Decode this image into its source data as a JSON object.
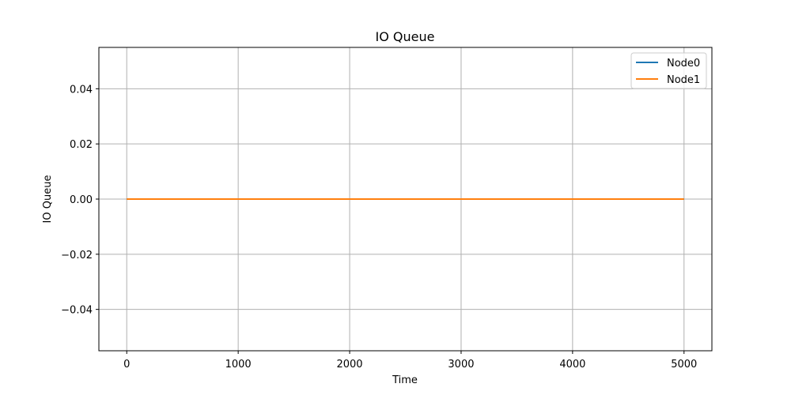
{
  "chart_data": {
    "type": "line",
    "title": "IO Queue",
    "xlabel": "Time",
    "ylabel": "IO Queue",
    "xlim": [
      -250,
      5250
    ],
    "ylim": [
      -0.055,
      0.055
    ],
    "x_ticks": [
      0,
      1000,
      2000,
      3000,
      4000,
      5000
    ],
    "x_tick_labels": [
      "0",
      "1000",
      "2000",
      "3000",
      "4000",
      "5000"
    ],
    "y_ticks": [
      0.04,
      0.02,
      0.0,
      -0.02,
      -0.04
    ],
    "y_tick_labels": [
      "0.04",
      "0.02",
      "0.00",
      "−0.02",
      "−0.04"
    ],
    "grid": true,
    "legend_position": "top-right",
    "series": [
      {
        "name": "Node0",
        "color": "#1f77b4",
        "x": [
          0,
          5000
        ],
        "y": [
          0,
          0
        ]
      },
      {
        "name": "Node1",
        "color": "#ff7f0e",
        "x": [
          0,
          5000
        ],
        "y": [
          0,
          0
        ]
      }
    ]
  }
}
